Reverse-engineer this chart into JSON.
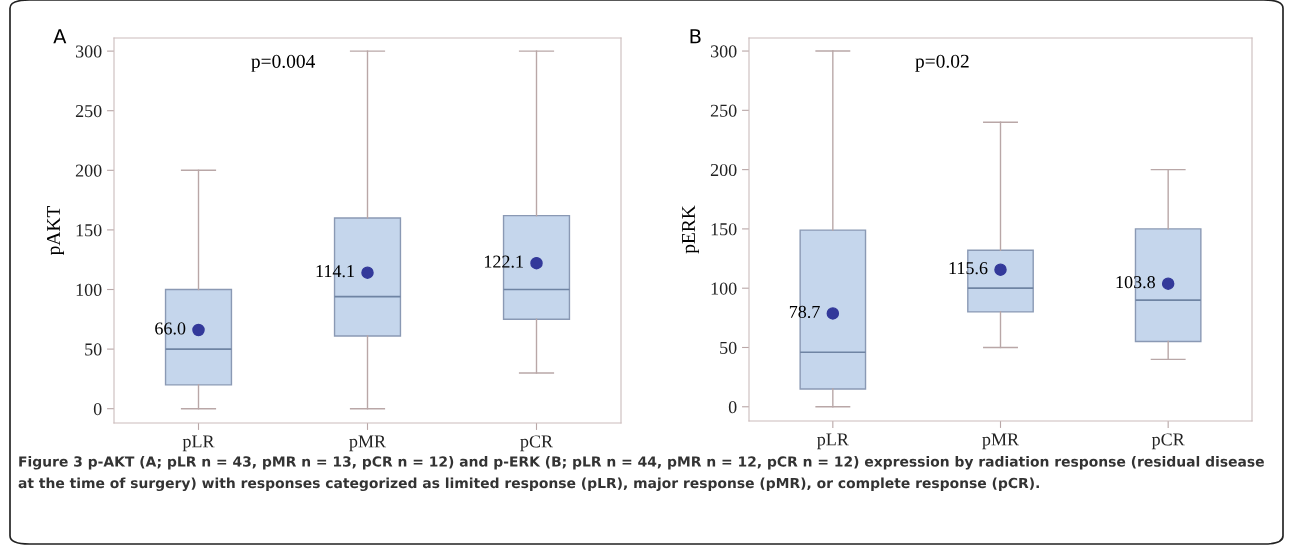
{
  "chart_data": [
    {
      "type": "box",
      "ylabel": "pAKT",
      "categories": [
        "pLR",
        "pMR",
        "pCR"
      ],
      "ylim": [
        -12,
        311
      ],
      "yticks": [
        0,
        50,
        100,
        150,
        200,
        250,
        300
      ],
      "color": "#c5d6ec",
      "boxes": [
        {
          "low": 0,
          "q1": 20,
          "median": 50,
          "q3": 100,
          "high": 200
        },
        {
          "low": 0,
          "q1": 61,
          "median": 94,
          "q3": 160,
          "high": 300
        },
        {
          "low": 30,
          "q1": 75,
          "median": 100,
          "q3": 162,
          "high": 300
        }
      ],
      "series": [
        {
          "type": "scatter",
          "x": [
            "pLR",
            "pMR",
            "pCR"
          ],
          "values": [
            66.0,
            114.1,
            122.1
          ],
          "value_labels": [
            "66.0",
            "114.1",
            "122.1"
          ],
          "color": "#33399a",
          "marker": "circle"
        }
      ],
      "annotations": [
        "A",
        "p=0.004",
        "Figure 3 p-AKT (A; pLR n = 43, pMR n = 13, pCR n = 12) and p-ERK (B; pLR n = 44, pMR n = 12, pCR n = 12) expression by radiation response (residual disease at the time of surgery) with responses categorized as limited response (pLR), major response (pMR), or complete response (pCR)."
      ]
    },
    {
      "type": "box",
      "ylabel": "pERK",
      "categories": [
        "pLR",
        "pMR",
        "pCR"
      ],
      "ylim": [
        -12,
        311
      ],
      "yticks": [
        0,
        50,
        100,
        150,
        200,
        250,
        300
      ],
      "color": "#c5d6ec",
      "boxes": [
        {
          "low": 0,
          "q1": 15,
          "median": 46,
          "q3": 149,
          "high": 300
        },
        {
          "low": 50,
          "q1": 80,
          "median": 100,
          "q3": 132,
          "high": 240
        },
        {
          "low": 40,
          "q1": 55,
          "median": 90,
          "q3": 150,
          "high": 200
        }
      ],
      "series": [
        {
          "type": "scatter",
          "x": [
            "pLR",
            "pMR",
            "pCR"
          ],
          "values": [
            78.7,
            115.6,
            103.8
          ],
          "value_labels": [
            "78.7",
            "115.6",
            "103.8"
          ],
          "color": "#33399a",
          "marker": "circle"
        }
      ],
      "annotations": [
        "B",
        "p=0.02"
      ]
    }
  ]
}
